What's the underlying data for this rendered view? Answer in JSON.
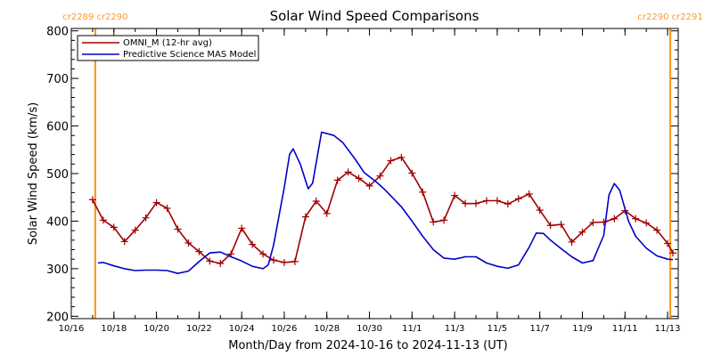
{
  "chart_data": {
    "type": "line",
    "title": "Solar Wind Speed Comparisons",
    "xlabel": "Month/Day from 2024-10-16 to 2024-11-13 (UT)",
    "ylabel": "Solar Wind Speed (km/s)",
    "ylim": [
      195,
      805
    ],
    "xlim": [
      "2024-10-16",
      "2024-11-13 12:00"
    ],
    "yticks": [
      200,
      300,
      400,
      500,
      600,
      700,
      800
    ],
    "xticks": [
      {
        "date": "2024-10-16",
        "label": "10/16"
      },
      {
        "date": "2024-10-18",
        "label": "10/18"
      },
      {
        "date": "2024-10-20",
        "label": "10/20"
      },
      {
        "date": "2024-10-22",
        "label": "10/22"
      },
      {
        "date": "2024-10-24",
        "label": "10/24"
      },
      {
        "date": "2024-10-26",
        "label": "10/26"
      },
      {
        "date": "2024-10-28",
        "label": "10/28"
      },
      {
        "date": "2024-10-30",
        "label": "10/30"
      },
      {
        "date": "2024-11-01",
        "label": "11/1"
      },
      {
        "date": "2024-11-03",
        "label": "11/3"
      },
      {
        "date": "2024-11-05",
        "label": "11/5"
      },
      {
        "date": "2024-11-07",
        "label": "11/7"
      },
      {
        "date": "2024-11-09",
        "label": "11/9"
      },
      {
        "date": "2024-11-11",
        "label": "11/11"
      },
      {
        "date": "2024-11-13",
        "label": "11/13"
      }
    ],
    "legend": {
      "placement": "top-left"
    },
    "series": [
      {
        "name": "OMNI_M (12-hr avg)",
        "color": "#a00000",
        "marker": "plus",
        "points": [
          [
            "2024-10-17 00:00",
            445
          ],
          [
            "2024-10-17 12:00",
            402
          ],
          [
            "2024-10-18 00:00",
            387
          ],
          [
            "2024-10-18 12:00",
            357
          ],
          [
            "2024-10-19 00:00",
            381
          ],
          [
            "2024-10-19 12:00",
            407
          ],
          [
            "2024-10-20 00:00",
            439
          ],
          [
            "2024-10-20 12:00",
            427
          ],
          [
            "2024-10-21 00:00",
            383
          ],
          [
            "2024-10-21 12:00",
            354
          ],
          [
            "2024-10-22 00:00",
            336
          ],
          [
            "2024-10-22 12:00",
            316
          ],
          [
            "2024-10-23 00:00",
            311
          ],
          [
            "2024-10-23 12:00",
            331
          ],
          [
            "2024-10-24 00:00",
            385
          ],
          [
            "2024-10-24 12:00",
            351
          ],
          [
            "2024-10-25 00:00",
            331
          ],
          [
            "2024-10-25 12:00",
            318
          ],
          [
            "2024-10-26 00:00",
            313
          ],
          [
            "2024-10-26 12:00",
            315
          ],
          [
            "2024-10-27 00:00",
            409
          ],
          [
            "2024-10-27 12:00",
            442
          ],
          [
            "2024-10-28 00:00",
            416
          ],
          [
            "2024-10-28 12:00",
            486
          ],
          [
            "2024-10-29 00:00",
            503
          ],
          [
            "2024-10-29 12:00",
            490
          ],
          [
            "2024-10-30 00:00",
            474
          ],
          [
            "2024-10-30 12:00",
            495
          ],
          [
            "2024-10-31 00:00",
            527
          ],
          [
            "2024-10-31 12:00",
            534
          ],
          [
            "2024-11-01 00:00",
            501
          ],
          [
            "2024-11-01 12:00",
            461
          ],
          [
            "2024-11-02 00:00",
            398
          ],
          [
            "2024-11-02 12:00",
            402
          ],
          [
            "2024-11-03 00:00",
            454
          ],
          [
            "2024-11-03 12:00",
            437
          ],
          [
            "2024-11-04 00:00",
            437
          ],
          [
            "2024-11-04 12:00",
            443
          ],
          [
            "2024-11-05 00:00",
            443
          ],
          [
            "2024-11-05 12:00",
            436
          ],
          [
            "2024-11-06 00:00",
            447
          ],
          [
            "2024-11-06 12:00",
            457
          ],
          [
            "2024-11-07 00:00",
            423
          ],
          [
            "2024-11-07 12:00",
            391
          ],
          [
            "2024-11-08 00:00",
            393
          ],
          [
            "2024-11-08 12:00",
            356
          ],
          [
            "2024-11-09 00:00",
            377
          ],
          [
            "2024-11-09 12:00",
            397
          ],
          [
            "2024-11-10 00:00",
            398
          ],
          [
            "2024-11-10 12:00",
            405
          ],
          [
            "2024-11-11 00:00",
            422
          ],
          [
            "2024-11-11 12:00",
            405
          ],
          [
            "2024-11-12 00:00",
            396
          ],
          [
            "2024-11-12 12:00",
            381
          ],
          [
            "2024-11-13 00:00",
            353
          ],
          [
            "2024-11-13 06:00",
            333
          ]
        ]
      },
      {
        "name": "Predictive Science MAS Model",
        "color": "#0000c8",
        "marker": "none",
        "points": [
          [
            "2024-10-17 06:00",
            312
          ],
          [
            "2024-10-17 12:00",
            313
          ],
          [
            "2024-10-18 00:00",
            306
          ],
          [
            "2024-10-18 12:00",
            300
          ],
          [
            "2024-10-19 00:00",
            296
          ],
          [
            "2024-10-19 12:00",
            297
          ],
          [
            "2024-10-20 00:00",
            297
          ],
          [
            "2024-10-20 12:00",
            296
          ],
          [
            "2024-10-21 00:00",
            290
          ],
          [
            "2024-10-21 12:00",
            295
          ],
          [
            "2024-10-22 00:00",
            315
          ],
          [
            "2024-10-22 12:00",
            333
          ],
          [
            "2024-10-23 00:00",
            335
          ],
          [
            "2024-10-23 12:00",
            325
          ],
          [
            "2024-10-24 00:00",
            316
          ],
          [
            "2024-10-24 12:00",
            305
          ],
          [
            "2024-10-25 00:00",
            300
          ],
          [
            "2024-10-25 06:00",
            308
          ],
          [
            "2024-10-25 12:00",
            350
          ],
          [
            "2024-10-26 00:00",
            470
          ],
          [
            "2024-10-26 06:00",
            540
          ],
          [
            "2024-10-26 10:00",
            552
          ],
          [
            "2024-10-26 18:00",
            520
          ],
          [
            "2024-10-27 03:00",
            468
          ],
          [
            "2024-10-27 08:00",
            480
          ],
          [
            "2024-10-27 18:00",
            587
          ],
          [
            "2024-10-28 08:00",
            580
          ],
          [
            "2024-10-28 18:00",
            565
          ],
          [
            "2024-10-29 08:00",
            530
          ],
          [
            "2024-10-29 18:00",
            502
          ],
          [
            "2024-10-30 08:00",
            482
          ],
          [
            "2024-10-30 18:00",
            465
          ],
          [
            "2024-10-31 12:00",
            430
          ],
          [
            "2024-11-01 00:00",
            400
          ],
          [
            "2024-11-01 12:00",
            368
          ],
          [
            "2024-11-02 00:00",
            340
          ],
          [
            "2024-11-02 12:00",
            322
          ],
          [
            "2024-11-03 00:00",
            320
          ],
          [
            "2024-11-03 12:00",
            325
          ],
          [
            "2024-11-04 00:00",
            325
          ],
          [
            "2024-11-04 12:00",
            312
          ],
          [
            "2024-11-05 00:00",
            305
          ],
          [
            "2024-11-05 12:00",
            301
          ],
          [
            "2024-11-06 00:00",
            308
          ],
          [
            "2024-11-06 12:00",
            345
          ],
          [
            "2024-11-06 20:00",
            375
          ],
          [
            "2024-11-07 04:00",
            374
          ],
          [
            "2024-11-07 12:00",
            360
          ],
          [
            "2024-11-08 00:00",
            342
          ],
          [
            "2024-11-08 12:00",
            325
          ],
          [
            "2024-11-09 00:00",
            312
          ],
          [
            "2024-11-09 12:00",
            317
          ],
          [
            "2024-11-10 00:00",
            370
          ],
          [
            "2024-11-10 06:00",
            455
          ],
          [
            "2024-11-10 12:00",
            479
          ],
          [
            "2024-11-10 18:00",
            465
          ],
          [
            "2024-11-11 04:00",
            400
          ],
          [
            "2024-11-11 12:00",
            368
          ],
          [
            "2024-11-12 00:00",
            343
          ],
          [
            "2024-11-12 12:00",
            327
          ],
          [
            "2024-11-13 00:00",
            320
          ],
          [
            "2024-11-13 06:00",
            319
          ]
        ]
      }
    ],
    "markers": [
      {
        "date": "2024-10-17 03:00",
        "left_label": "cr2289",
        "right_label": "cr2290",
        "color": "#ff9a1e"
      },
      {
        "date": "2024-11-13 03:00",
        "left_label": "cr2290",
        "right_label": "cr2291",
        "color": "#ff9a1e"
      }
    ]
  }
}
